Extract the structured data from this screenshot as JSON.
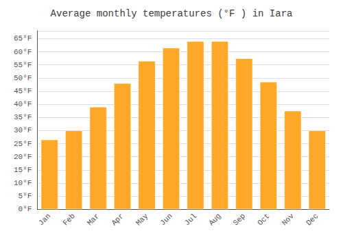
{
  "chart_data": {
    "type": "bar",
    "title": "Average monthly temperatures (°F ) in Iara",
    "categories": [
      "Jan",
      "Feb",
      "Mar",
      "Apr",
      "May",
      "Jun",
      "Jul",
      "Aug",
      "Sep",
      "Oct",
      "Nov",
      "Dec"
    ],
    "values": [
      26.5,
      30.0,
      39.0,
      48.0,
      56.5,
      61.5,
      64.0,
      64.0,
      57.5,
      48.5,
      37.5,
      30.0
    ],
    "color": "#FFA726",
    "ylim": [
      0,
      68
    ],
    "yticks": [
      {
        "value": 0,
        "label": "0°F"
      },
      {
        "value": 5,
        "label": "5°F"
      },
      {
        "value": 10,
        "label": "10°F"
      },
      {
        "value": 15,
        "label": "15°F"
      },
      {
        "value": 20,
        "label": "20°F"
      },
      {
        "value": 25,
        "label": "25°F"
      },
      {
        "value": 30,
        "label": "30°F"
      },
      {
        "value": 35,
        "label": "35°F"
      },
      {
        "value": 40,
        "label": "40°F"
      },
      {
        "value": 45,
        "label": "45°F"
      },
      {
        "value": 50,
        "label": "50°F"
      },
      {
        "value": 55,
        "label": "55°F"
      },
      {
        "value": 60,
        "label": "60°F"
      },
      {
        "value": 65,
        "label": "65°F"
      }
    ],
    "grid": true
  }
}
